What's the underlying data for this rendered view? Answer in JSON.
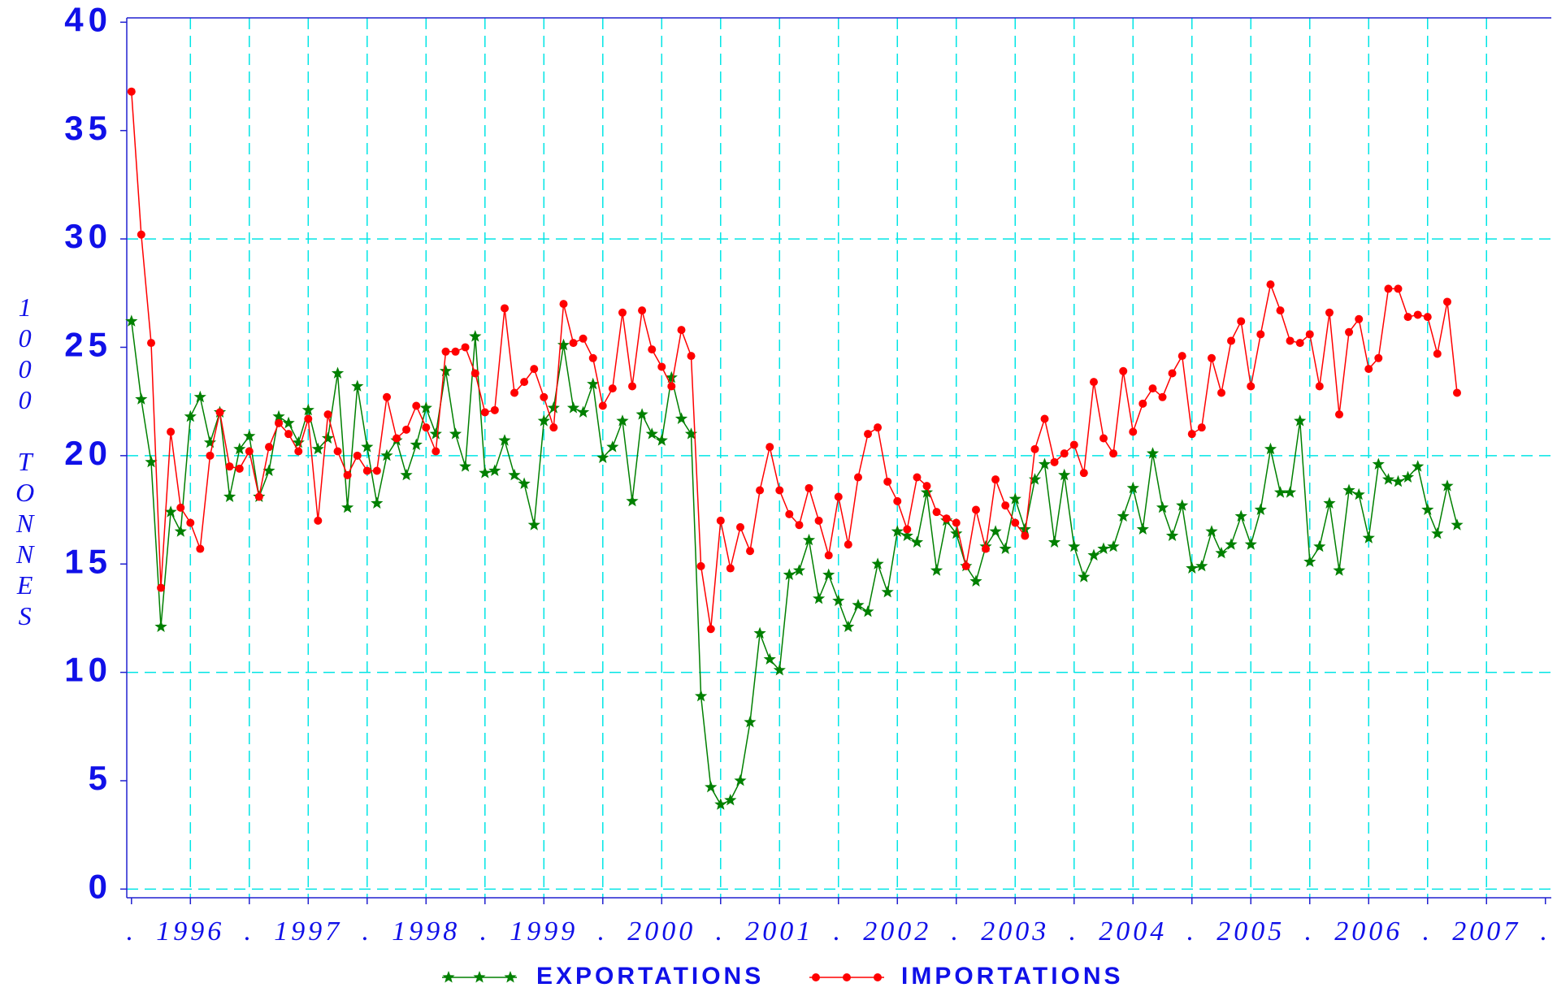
{
  "chart_data": {
    "type": "line",
    "ylabel": "1000 TONNES",
    "xlim": [
      1995.96,
      2008.05
    ],
    "ylim": [
      -0.4,
      40.2
    ],
    "yticks": [
      0,
      5,
      10,
      15,
      20,
      25,
      30,
      35,
      40
    ],
    "ygrid": [
      0,
      10,
      20,
      30
    ],
    "xticks": [
      {
        "value": 1996,
        "label": "."
      },
      {
        "value": 1996.5,
        "label": "1996"
      },
      {
        "value": 1997,
        "label": "."
      },
      {
        "value": 1997.5,
        "label": "1997"
      },
      {
        "value": 1998,
        "label": "."
      },
      {
        "value": 1998.5,
        "label": "1998"
      },
      {
        "value": 1999,
        "label": "."
      },
      {
        "value": 1999.5,
        "label": "1999"
      },
      {
        "value": 2000,
        "label": "."
      },
      {
        "value": 2000.5,
        "label": "2000"
      },
      {
        "value": 2001,
        "label": "."
      },
      {
        "value": 2001.5,
        "label": "2001"
      },
      {
        "value": 2002,
        "label": "."
      },
      {
        "value": 2002.5,
        "label": "2002"
      },
      {
        "value": 2003,
        "label": "."
      },
      {
        "value": 2003.5,
        "label": "2003"
      },
      {
        "value": 2004,
        "label": "."
      },
      {
        "value": 2004.5,
        "label": "2004"
      },
      {
        "value": 2005,
        "label": "."
      },
      {
        "value": 2005.5,
        "label": "2005"
      },
      {
        "value": 2006,
        "label": "."
      },
      {
        "value": 2006.5,
        "label": "2006"
      },
      {
        "value": 2007,
        "label": "."
      },
      {
        "value": 2007.5,
        "label": "2007"
      },
      {
        "value": 2008,
        "label": "."
      }
    ],
    "grid": true,
    "x": [
      1996,
      1996.083,
      1996.167,
      1996.25,
      1996.333,
      1996.417,
      1996.5,
      1996.583,
      1996.667,
      1996.75,
      1996.833,
      1996.917,
      1997,
      1997.083,
      1997.167,
      1997.25,
      1997.333,
      1997.417,
      1997.5,
      1997.583,
      1997.667,
      1997.75,
      1997.833,
      1997.917,
      1998,
      1998.083,
      1998.167,
      1998.25,
      1998.333,
      1998.417,
      1998.5,
      1998.583,
      1998.667,
      1998.75,
      1998.833,
      1998.917,
      1999,
      1999.083,
      1999.167,
      1999.25,
      1999.333,
      1999.417,
      1999.5,
      1999.583,
      1999.667,
      1999.75,
      1999.833,
      1999.917,
      2000,
      2000.083,
      2000.167,
      2000.25,
      2000.333,
      2000.417,
      2000.5,
      2000.583,
      2000.667,
      2000.75,
      2000.833,
      2000.917,
      2001,
      2001.083,
      2001.167,
      2001.25,
      2001.333,
      2001.417,
      2001.5,
      2001.583,
      2001.667,
      2001.75,
      2001.833,
      2001.917,
      2002,
      2002.083,
      2002.167,
      2002.25,
      2002.333,
      2002.417,
      2002.5,
      2002.583,
      2002.667,
      2002.75,
      2002.833,
      2002.917,
      2003,
      2003.083,
      2003.167,
      2003.25,
      2003.333,
      2003.417,
      2003.5,
      2003.583,
      2003.667,
      2003.75,
      2003.833,
      2003.917,
      2004,
      2004.083,
      2004.167,
      2004.25,
      2004.333,
      2004.417,
      2004.5,
      2004.583,
      2004.667,
      2004.75,
      2004.833,
      2004.917,
      2005,
      2005.083,
      2005.167,
      2005.25,
      2005.333,
      2005.417,
      2005.5,
      2005.583,
      2005.667,
      2005.75,
      2005.833,
      2005.917,
      2006,
      2006.083,
      2006.167,
      2006.25,
      2006.333,
      2006.417,
      2006.5,
      2006.583,
      2006.667,
      2006.75,
      2006.833,
      2006.917,
      2007,
      2007.083,
      2007.167,
      2007.25
    ],
    "series": [
      {
        "name": "EXPORTATIONS",
        "color": "#008000",
        "marker": "star",
        "values": [
          26.2,
          22.6,
          19.7,
          12.1,
          17.4,
          16.5,
          21.8,
          22.7,
          20.6,
          22.0,
          18.1,
          20.3,
          20.9,
          18.1,
          19.3,
          21.8,
          21.5,
          20.6,
          22.1,
          20.3,
          20.8,
          23.8,
          17.6,
          23.2,
          20.4,
          17.8,
          20.0,
          20.7,
          19.1,
          20.5,
          22.2,
          21.0,
          23.9,
          21.0,
          19.5,
          25.5,
          19.2,
          19.3,
          20.7,
          19.1,
          18.7,
          16.8,
          21.6,
          22.2,
          25.1,
          22.2,
          22.0,
          23.3,
          19.9,
          20.4,
          21.6,
          17.9,
          21.9,
          21.0,
          20.7,
          23.6,
          21.7,
          21.0,
          8.9,
          4.7,
          3.9,
          4.1,
          5.0,
          7.7,
          11.8,
          10.6,
          10.1,
          14.5,
          14.7,
          16.1,
          13.4,
          14.5,
          13.3,
          12.1,
          13.1,
          12.8,
          15.0,
          13.7,
          16.5,
          16.3,
          16.0,
          18.3,
          14.7,
          17.0,
          16.4,
          14.9,
          14.2,
          15.8,
          16.5,
          15.7,
          18.0,
          16.6,
          18.9,
          19.6,
          16.0,
          19.1,
          15.8,
          14.4,
          15.4,
          15.7,
          15.8,
          17.2,
          18.5,
          16.6,
          20.1,
          17.6,
          16.3,
          17.7,
          14.8,
          14.9,
          16.5,
          15.5,
          15.9,
          17.2,
          15.9,
          17.5,
          20.3,
          18.3,
          18.3,
          21.6,
          15.1,
          15.8,
          17.8,
          14.7,
          18.4,
          18.2,
          16.2,
          19.6,
          18.9,
          18.8,
          19.0,
          19.5,
          17.5,
          16.4,
          18.6,
          16.8
        ]
      },
      {
        "name": "IMPORTATIONS",
        "color": "#ff0000",
        "marker": "circle",
        "values": [
          36.8,
          30.2,
          25.2,
          13.9,
          21.1,
          17.6,
          16.9,
          15.7,
          20.0,
          22.0,
          19.5,
          19.4,
          20.2,
          18.1,
          20.4,
          21.5,
          21.0,
          20.2,
          21.7,
          17.0,
          21.9,
          20.2,
          19.1,
          20.0,
          19.3,
          19.3,
          22.7,
          20.8,
          21.2,
          22.3,
          21.3,
          20.2,
          24.8,
          24.8,
          25.0,
          23.8,
          22.0,
          22.1,
          26.8,
          22.9,
          23.4,
          24.0,
          22.7,
          21.3,
          27.0,
          25.2,
          25.4,
          24.5,
          22.3,
          23.1,
          26.6,
          23.2,
          26.7,
          24.9,
          24.1,
          23.2,
          25.8,
          24.6,
          14.9,
          12.0,
          17.0,
          14.8,
          16.7,
          15.6,
          18.4,
          20.4,
          18.4,
          17.3,
          16.8,
          18.5,
          17.0,
          15.4,
          18.1,
          15.9,
          19.0,
          21.0,
          21.3,
          18.8,
          17.9,
          16.6,
          19.0,
          18.6,
          17.4,
          17.1,
          16.9,
          14.9,
          17.5,
          15.7,
          18.9,
          17.7,
          16.9,
          16.3,
          20.3,
          21.7,
          19.7,
          20.1,
          20.5,
          19.2,
          23.4,
          20.8,
          20.1,
          23.9,
          21.1,
          22.4,
          23.1,
          22.7,
          23.8,
          24.6,
          21.0,
          21.3,
          24.5,
          22.9,
          25.3,
          26.2,
          23.2,
          25.6,
          27.9,
          26.7,
          25.3,
          25.2,
          25.6,
          23.2,
          26.6,
          21.9,
          25.7,
          26.3,
          24.0,
          24.5,
          27.7,
          27.7,
          26.4,
          26.5,
          26.4,
          24.7,
          27.1,
          22.9
        ]
      }
    ]
  }
}
